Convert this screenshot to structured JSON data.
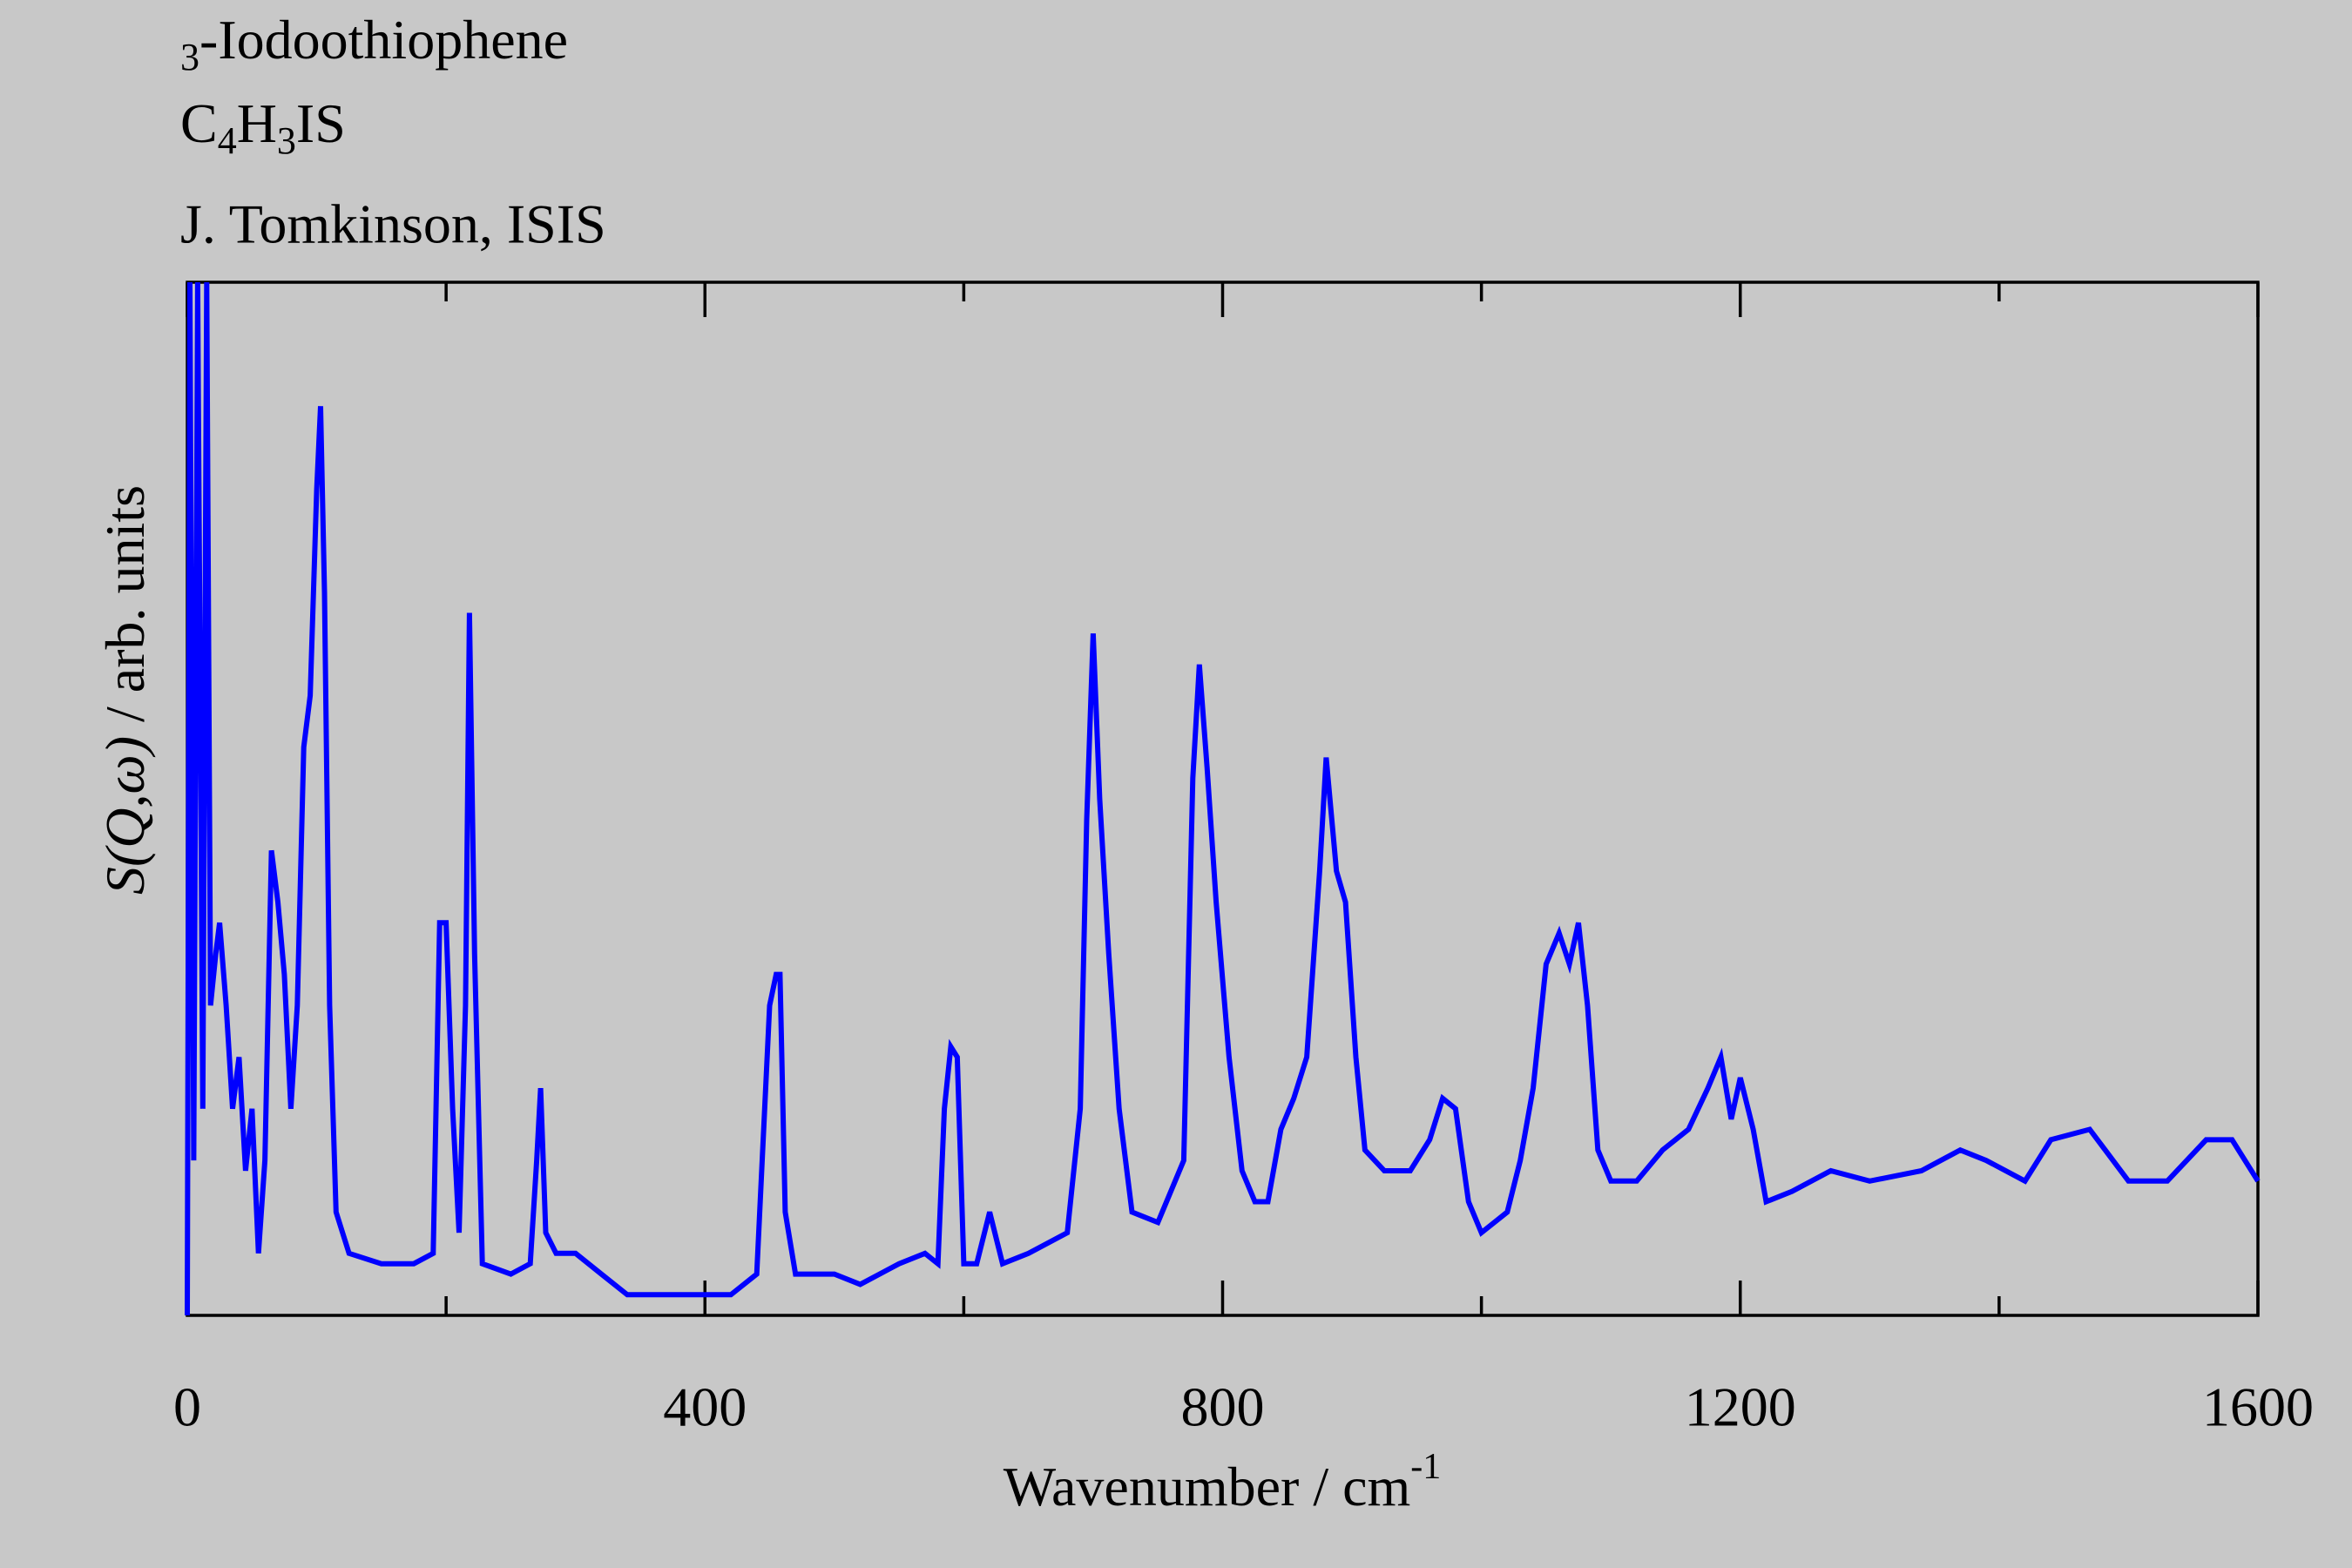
{
  "chart_data": {
    "type": "line",
    "title_lines": [
      "3-Iodoothiophene",
      "C4H3IS",
      "J. Tomkinson, ISIS"
    ],
    "x_label": {
      "text": "Wavenumber / cm",
      "superscript": "-1"
    },
    "y_label": {
      "italic": "S(Q,ω)",
      "text": " / arb. units"
    },
    "xlim": [
      0,
      1600
    ],
    "ylim": [
      0,
      100
    ],
    "xticks": [
      0,
      400,
      800,
      1200,
      1600
    ],
    "xticks_minor": [
      200,
      600,
      1000,
      1400
    ],
    "series": [
      {
        "name": "3-Iodoothiophene",
        "color": "#0000ff",
        "x": [
          0,
          2,
          5,
          8,
          12,
          15,
          18,
          22,
          25,
          30,
          35,
          40,
          45,
          50,
          55,
          60,
          65,
          70,
          75,
          80,
          85,
          90,
          95,
          100,
          103,
          106,
          110,
          115,
          125,
          150,
          175,
          190,
          195,
          200,
          205,
          210,
          215,
          218,
          222,
          228,
          250,
          265,
          270,
          273,
          277,
          285,
          300,
          320,
          340,
          380,
          420,
          440,
          450,
          455,
          458,
          462,
          470,
          500,
          520,
          550,
          570,
          580,
          585,
          590,
          595,
          600,
          610,
          620,
          630,
          650,
          680,
          690,
          695,
          700,
          705,
          712,
          720,
          730,
          750,
          770,
          777,
          782,
          788,
          795,
          805,
          815,
          825,
          835,
          845,
          855,
          865,
          875,
          880,
          888,
          895,
          903,
          910,
          925,
          945,
          960,
          970,
          980,
          990,
          1000,
          1020,
          1030,
          1040,
          1050,
          1060,
          1068,
          1075,
          1082,
          1090,
          1100,
          1120,
          1140,
          1160,
          1175,
          1185,
          1193,
          1200,
          1210,
          1220,
          1240,
          1270,
          1300,
          1340,
          1370,
          1390,
          1420,
          1440,
          1470,
          1500,
          1530,
          1560,
          1580,
          1600
        ],
        "values": [
          0,
          100,
          15,
          100,
          20,
          100,
          30,
          35,
          38,
          30,
          20,
          25,
          14,
          20,
          6,
          15,
          45,
          40,
          33,
          20,
          30,
          55,
          60,
          80,
          88,
          70,
          30,
          10,
          6,
          5,
          5,
          6,
          38,
          38,
          20,
          8,
          30,
          68,
          35,
          5,
          4,
          5,
          15,
          22,
          8,
          6,
          6,
          4,
          2,
          2,
          2,
          4,
          30,
          33,
          33,
          10,
          4,
          4,
          3,
          5,
          6,
          5,
          20,
          26,
          25,
          5,
          5,
          10,
          5,
          6,
          8,
          20,
          48,
          66,
          50,
          35,
          20,
          10,
          9,
          15,
          52,
          63,
          53,
          40,
          25,
          14,
          11,
          11,
          18,
          21,
          25,
          43,
          54,
          43,
          40,
          25,
          16,
          14,
          14,
          17,
          21,
          20,
          11,
          8,
          10,
          15,
          22,
          34,
          37,
          34,
          38,
          30,
          16,
          13,
          13,
          16,
          18,
          22,
          25,
          19,
          23,
          18,
          11,
          12,
          14,
          13,
          14,
          16,
          15,
          13,
          17,
          18,
          13,
          13,
          17,
          17,
          13
        ]
      }
    ]
  }
}
